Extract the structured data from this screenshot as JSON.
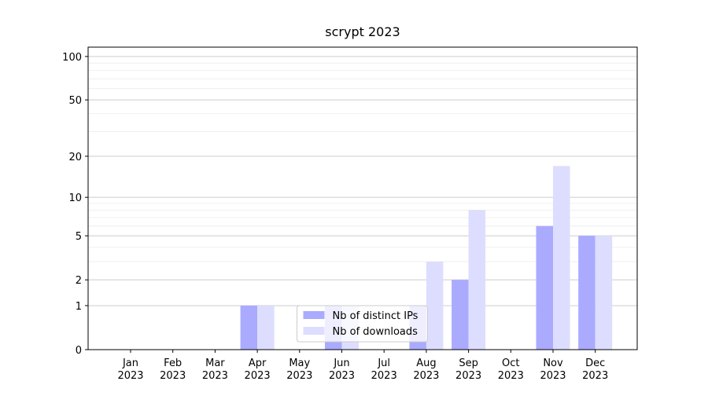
{
  "chart_data": {
    "type": "bar",
    "title": "scrypt 2023",
    "categories": [
      "Jan 2023",
      "Feb 2023",
      "Mar 2023",
      "Apr 2023",
      "May 2023",
      "Jun 2023",
      "Jul 2023",
      "Aug 2023",
      "Sep 2023",
      "Oct 2023",
      "Nov 2023",
      "Dec 2023"
    ],
    "series": [
      {
        "name": "Nb of distinct IPs",
        "color": "#aaaaff",
        "values": [
          0,
          0,
          0,
          1,
          0,
          1,
          0,
          1,
          2,
          0,
          6,
          5
        ]
      },
      {
        "name": "Nb of downloads",
        "color": "#ddddff",
        "values": [
          0,
          0,
          0,
          1,
          0,
          1,
          0,
          3,
          8,
          0,
          17,
          5
        ]
      }
    ],
    "yscale": "log1p",
    "ylim": [
      0,
      116
    ],
    "yticks": [
      0,
      1,
      2,
      5,
      10,
      20,
      50,
      100
    ],
    "minor_yticks": [
      3,
      4,
      6,
      7,
      8,
      9,
      30,
      40,
      60,
      70,
      80,
      90
    ],
    "grid": true,
    "legend": "lower center"
  }
}
